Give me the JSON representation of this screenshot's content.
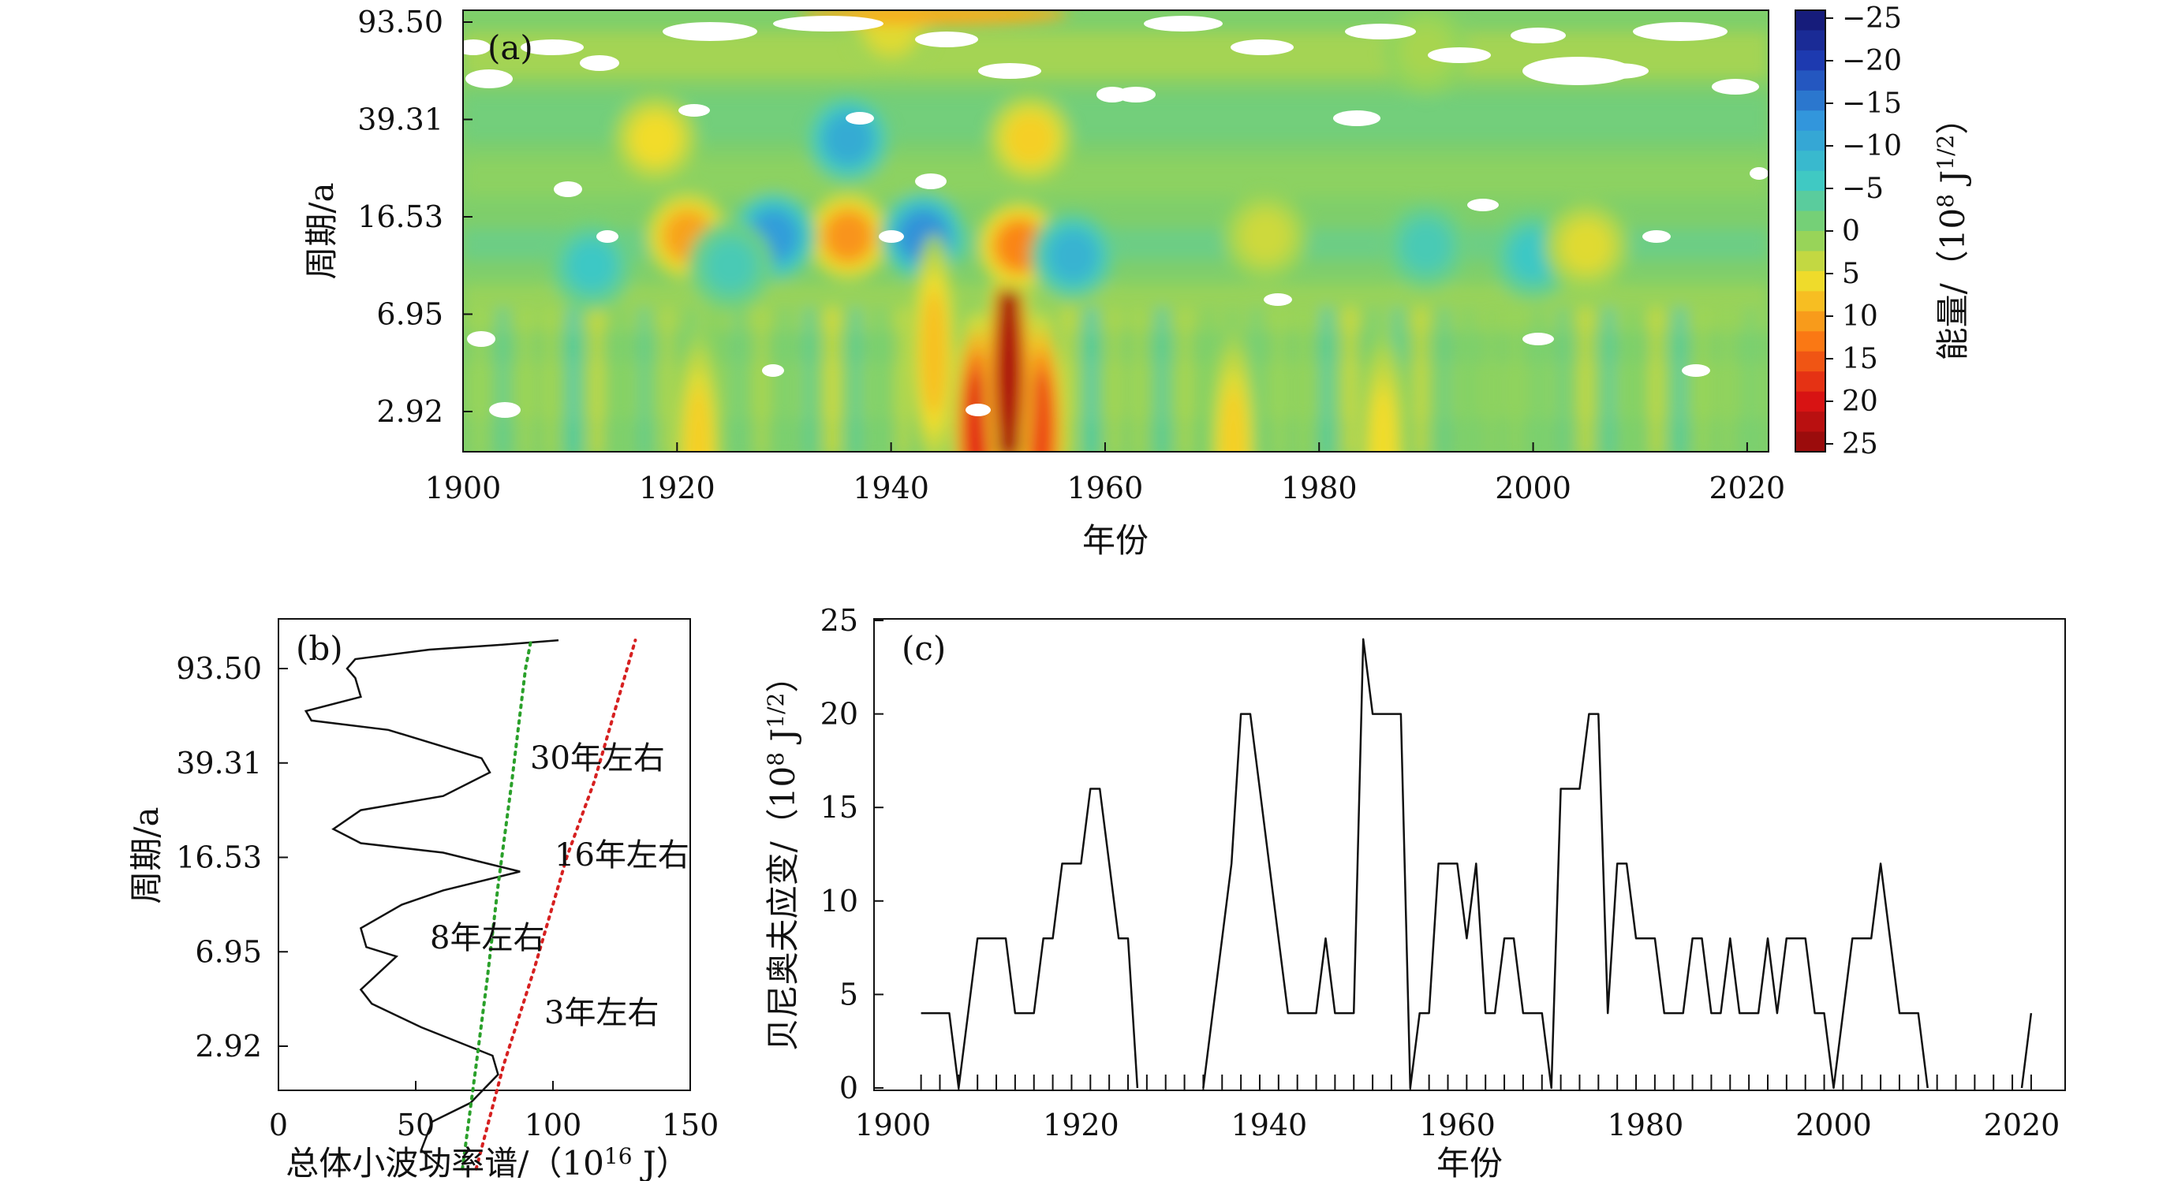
{
  "chart_data": [
    {
      "panel": "(a)",
      "type": "heatmap",
      "xlabel": "年份",
      "ylabel": "周期/a",
      "x_ticks": [
        1900,
        1920,
        1940,
        1960,
        1980,
        2000,
        2020
      ],
      "xlim": [
        1900,
        2022
      ],
      "y_ticks": [
        "93.50",
        "39.31",
        "16.53",
        "6.95",
        "2.92"
      ],
      "colorbar": {
        "label_main": "能量/（10",
        "label_exp": "8",
        "label_unit": " J",
        "label_exp2": "1/2",
        "label_end": "）",
        "ticks": [
          "−25",
          "−20",
          "−15",
          "−10",
          "−5",
          "0",
          "5",
          "10",
          "15",
          "20",
          "25"
        ],
        "range": [
          -25,
          25
        ]
      },
      "blobs": [
        {
          "year": 1951,
          "period_level": 4.6,
          "value": 25
        },
        {
          "year": 1948,
          "period_level": 4.2,
          "value": 18
        },
        {
          "year": 1954,
          "period_level": 4.2,
          "value": 16
        },
        {
          "year": 1951,
          "period_level": 3.6,
          "value": 20
        },
        {
          "year": 1952,
          "period_level": 2.3,
          "value": 12
        },
        {
          "year": 1921,
          "period_level": 2.2,
          "value": 10
        },
        {
          "year": 1936,
          "period_level": 2.2,
          "value": 11
        },
        {
          "year": 1929,
          "period_level": 2.2,
          "value": -12
        },
        {
          "year": 1943,
          "period_level": 2.2,
          "value": -13
        },
        {
          "year": 1957,
          "period_level": 2.4,
          "value": -9
        },
        {
          "year": 1918,
          "period_level": 1.2,
          "value": 6
        },
        {
          "year": 1936,
          "period_level": 1.2,
          "value": -10
        },
        {
          "year": 1953,
          "period_level": 1.2,
          "value": 7
        },
        {
          "year": 1912,
          "period_level": 2.5,
          "value": -6
        },
        {
          "year": 1925,
          "period_level": 2.5,
          "value": -5
        },
        {
          "year": 1990,
          "period_level": 2.3,
          "value": -5
        },
        {
          "year": 2000,
          "period_level": 2.4,
          "value": -6
        },
        {
          "year": 2005,
          "period_level": 2.3,
          "value": 5
        },
        {
          "year": 1975,
          "period_level": 2.2,
          "value": 4
        },
        {
          "year": 1922,
          "period_level": 4.4,
          "value": 7
        },
        {
          "year": 1972,
          "period_level": 4.4,
          "value": 7
        },
        {
          "year": 1986,
          "period_level": 4.4,
          "value": 6
        },
        {
          "year": 1944,
          "period_level": 3.4,
          "value": 8
        },
        {
          "year": 1990,
          "period_level": 0.3,
          "value": 2
        },
        {
          "year": 1940,
          "period_level": 0.05,
          "value": 5
        }
      ]
    },
    {
      "panel": "(b)",
      "type": "line",
      "xlabel_main": "总体小波功率谱/（10",
      "xlabel_exp": "16",
      "xlabel_end": " J）",
      "ylabel": "周期/a",
      "x_ticks": [
        0,
        50,
        100,
        150
      ],
      "xlim": [
        0,
        150
      ],
      "y_ticks": [
        "93.50",
        "39.31",
        "16.53",
        "6.95",
        "2.92"
      ],
      "annotations": [
        "30年左右",
        "16年左右",
        "8年左右",
        "3年左右"
      ],
      "series": [
        {
          "style": "solid",
          "points": [
            [
              60,
              5.3
            ],
            [
              52,
              5.1
            ],
            [
              56,
              4.8
            ],
            [
              70,
              4.6
            ],
            [
              80,
              4.3
            ],
            [
              78,
              4.1
            ],
            [
              52,
              3.8
            ],
            [
              34,
              3.55
            ],
            [
              30,
              3.4
            ],
            [
              43,
              3.05
            ],
            [
              32,
              2.95
            ],
            [
              30,
              2.75
            ],
            [
              45,
              2.5
            ],
            [
              60,
              2.35
            ],
            [
              88,
              2.15
            ],
            [
              60,
              1.95
            ],
            [
              30,
              1.85
            ],
            [
              20,
              1.7
            ],
            [
              30,
              1.5
            ],
            [
              60,
              1.35
            ],
            [
              77,
              1.1
            ],
            [
              74,
              0.95
            ],
            [
              40,
              0.65
            ],
            [
              12,
              0.55
            ],
            [
              10,
              0.45
            ],
            [
              30,
              0.3
            ],
            [
              28,
              0.1
            ],
            [
              25,
              0.0
            ],
            [
              28,
              -0.1
            ],
            [
              55,
              -0.2
            ],
            [
              80,
              -0.25
            ],
            [
              102,
              -0.3
            ]
          ]
        },
        {
          "style": "green-dotted",
          "points": [
            [
              67,
              5.3
            ],
            [
              72,
              4.2
            ],
            [
              76,
              3.3
            ],
            [
              80,
              2.3
            ],
            [
              85,
              1.2
            ],
            [
              90,
              0.0
            ],
            [
              92,
              -0.3
            ]
          ]
        },
        {
          "style": "red-dotted",
          "points": [
            [
              72,
              5.3
            ],
            [
              82,
              4.2
            ],
            [
              93,
              3.2
            ],
            [
              105,
              2.0
            ],
            [
              115,
              1.2
            ],
            [
              125,
              0.2
            ],
            [
              130,
              -0.3
            ]
          ]
        }
      ]
    },
    {
      "panel": "(c)",
      "type": "line",
      "xlabel": "年份",
      "ylabel_main": "贝尼奥夫应变/（10",
      "ylabel_exp": "8",
      "ylabel_unit": " J",
      "ylabel_exp2": "1/2",
      "ylabel_end": "）",
      "x_ticks": [
        1900,
        1920,
        1940,
        1960,
        1980,
        2000,
        2020
      ],
      "xlim": [
        1898,
        2022
      ],
      "y_ticks": [
        0,
        5,
        10,
        15,
        20,
        25
      ],
      "ylim": [
        0,
        25
      ],
      "x": [
        1903,
        1905,
        1906,
        1907,
        1908,
        1909,
        1910,
        1911,
        1912,
        1913,
        1914,
        1915,
        1916,
        1917,
        1918,
        1919,
        1920,
        1921,
        1922,
        1923,
        1924,
        1925,
        1926,
        1933,
        1934,
        1935,
        1936,
        1937,
        1938,
        1939,
        1940,
        1941,
        1942,
        1943,
        1944,
        1945,
        1946,
        1947,
        1948,
        1949,
        1950,
        1951,
        1952,
        1953,
        1954,
        1955,
        1956,
        1957,
        1958,
        1959,
        1960,
        1961,
        1962,
        1963,
        1964,
        1965,
        1966,
        1967,
        1968,
        1969,
        1970,
        1971,
        1972,
        1973,
        1974,
        1975,
        1976,
        1977,
        1978,
        1979,
        1980,
        1981,
        1982,
        1983,
        1984,
        1985,
        1986,
        1987,
        1988,
        1989,
        1990,
        1991,
        1992,
        1993,
        1994,
        1995,
        1996,
        1997,
        1998,
        1999,
        2000,
        2001,
        2002,
        2003,
        2004,
        2005,
        2006,
        2007,
        2008,
        2009,
        2010,
        2020,
        2021
      ],
      "values": [
        4,
        4,
        4,
        0,
        4,
        8,
        8,
        8,
        8,
        4,
        4,
        4,
        8,
        8,
        12,
        12,
        12,
        16,
        16,
        12,
        8,
        8,
        0,
        0,
        4,
        8,
        12,
        20,
        20,
        16,
        12,
        8,
        4,
        4,
        4,
        4,
        8,
        4,
        4,
        4,
        24,
        20,
        20,
        20,
        20,
        0,
        4,
        4,
        12,
        12,
        12,
        8,
        12,
        4,
        4,
        8,
        8,
        4,
        4,
        4,
        0,
        16,
        16,
        16,
        20,
        20,
        4,
        12,
        12,
        8,
        8,
        8,
        4,
        4,
        4,
        8,
        8,
        4,
        4,
        8,
        4,
        4,
        4,
        8,
        4,
        8,
        8,
        8,
        4,
        4,
        0,
        4,
        8,
        8,
        8,
        12,
        8,
        4,
        4,
        4,
        0,
        0,
        4
      ],
      "tick_years": [
        1903,
        1905,
        1907,
        1909,
        1911,
        1913,
        1915,
        1917,
        1919,
        1921,
        1923,
        1925,
        1927,
        1929,
        1931,
        1933,
        1935,
        1937,
        1939,
        1941,
        1943,
        1945,
        1947,
        1949,
        1951,
        1953,
        1955,
        1957,
        1959,
        1961,
        1963,
        1965,
        1967,
        1969,
        1971,
        1973,
        1975,
        1977,
        1979,
        1981,
        1983,
        1985,
        1987,
        1989,
        1991,
        1993,
        1995,
        1997,
        1999,
        2001,
        2003,
        2005,
        2007,
        2009,
        2011,
        2013,
        2015,
        2017,
        2019,
        2021
      ]
    }
  ]
}
